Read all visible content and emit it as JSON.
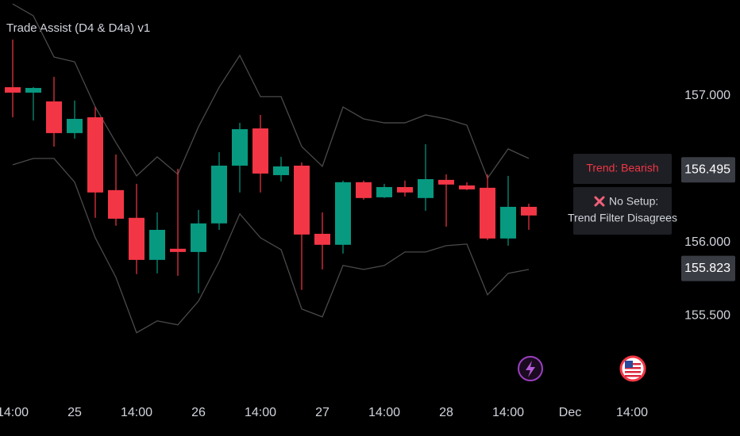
{
  "chart_data": {
    "type": "candlestick",
    "title": "Trade Assist (D4 & D4a) v1",
    "categories": [
      "14:00",
      null,
      null,
      "25",
      null,
      null,
      "14:00",
      null,
      null,
      "26",
      null,
      null,
      "14:00",
      null,
      null,
      "27",
      null,
      null,
      "14:00",
      null,
      null,
      "28",
      null,
      null,
      "14:00",
      null,
      null,
      "Dec",
      null,
      null,
      "14:00"
    ],
    "open": [
      157.059,
      157.022,
      156.962,
      156.746,
      156.854,
      156.357,
      156.168,
      155.881,
      155.957,
      155.935,
      156.13,
      156.524,
      156.778,
      156.459,
      156.524,
      156.059,
      155.984,
      156.411,
      156.308,
      156.378,
      156.303,
      156.427,
      156.389,
      156.373,
      156.027,
      156.243,
      null,
      null,
      null,
      null,
      null
    ],
    "high": [
      157.384,
      157.06,
      157.13,
      156.968,
      156.924,
      156.6,
      156.4,
      156.205,
      156.503,
      156.222,
      156.616,
      156.816,
      156.87,
      156.584,
      156.546,
      156.205,
      156.422,
      156.422,
      156.4,
      156.422,
      156.67,
      156.465,
      156.411,
      156.465,
      156.454,
      156.265,
      null,
      null,
      null,
      null,
      null
    ],
    "low": [
      156.854,
      156.832,
      156.654,
      156.708,
      156.168,
      156.114,
      155.784,
      155.789,
      155.773,
      155.654,
      156.086,
      156.341,
      156.341,
      156.416,
      155.676,
      155.816,
      155.924,
      156.292,
      156.303,
      156.314,
      156.216,
      156.108,
      156.357,
      156.016,
      155.978,
      156.086,
      null,
      null,
      null,
      null,
      null
    ],
    "close": [
      157.022,
      157.054,
      156.746,
      156.843,
      156.341,
      156.162,
      155.881,
      156.086,
      155.935,
      156.13,
      156.524,
      156.773,
      156.47,
      156.519,
      156.054,
      155.984,
      156.411,
      156.303,
      156.378,
      156.341,
      156.432,
      156.395,
      156.362,
      156.027,
      156.243,
      156.184,
      null,
      null,
      null,
      null,
      null
    ],
    "up_color": "#089981",
    "down_color": "#f23645",
    "bands": {
      "color": "#4a4a4a",
      "upper": [
        157.627,
        157.546,
        157.265,
        157.232,
        156.924,
        156.681,
        156.454,
        156.584,
        156.465,
        156.789,
        157.059,
        157.276,
        156.995,
        156.995,
        156.654,
        156.519,
        156.924,
        156.843,
        156.816,
        156.816,
        156.87,
        156.843,
        156.8,
        156.438,
        156.638,
        156.573,
        null,
        null,
        null,
        null,
        null
      ],
      "lower": [
        156.53,
        156.573,
        156.573,
        156.411,
        156.032,
        155.762,
        155.384,
        155.465,
        155.438,
        155.6,
        155.87,
        156.195,
        156.032,
        155.951,
        155.546,
        155.492,
        155.843,
        155.816,
        155.843,
        155.935,
        155.935,
        155.978,
        155.989,
        155.643,
        155.789,
        155.816,
        null,
        null,
        null,
        null,
        null
      ]
    },
    "ylim": [
      154.95,
      157.654
    ],
    "yticks": [
      {
        "value": 157,
        "label": "157.000"
      },
      {
        "value": 156,
        "label": "156.000"
      },
      {
        "value": 155.5,
        "label": "155.500"
      }
    ],
    "price_labels": [
      156.495,
      155.823
    ],
    "annotations": [
      "Trend: Bearish",
      "No Setup:",
      "Trend Filter Disagrees"
    ]
  }
}
